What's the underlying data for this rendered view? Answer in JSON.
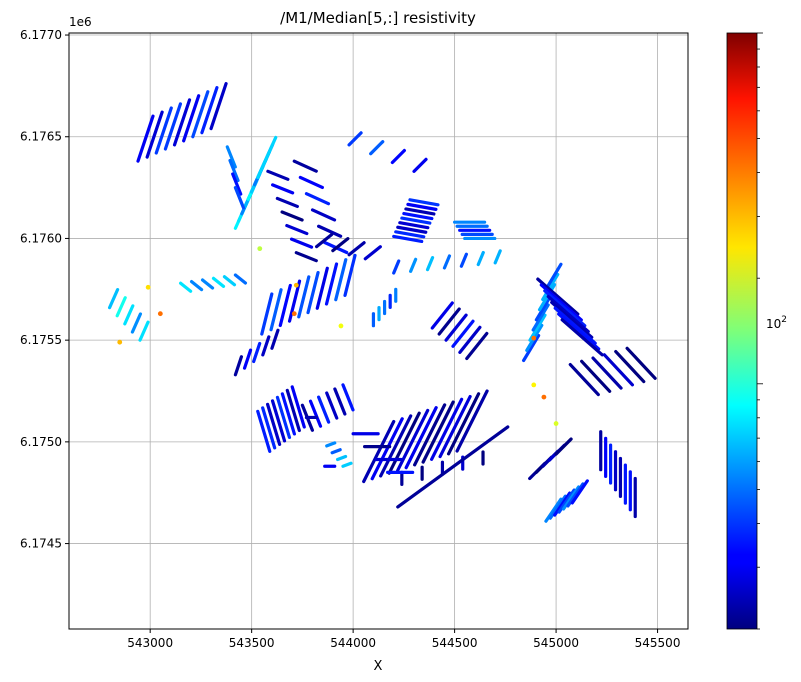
{
  "chart_data": {
    "type": "scatter",
    "title": "/M1/Median[5,:] resistivity",
    "xlabel": "X",
    "ylabel": "",
    "y_offset_label": "1e6",
    "xlim": [
      542600,
      545650
    ],
    "ylim": [
      6.17408,
      6.17701
    ],
    "x_ticks": [
      543000,
      543500,
      544000,
      544500,
      545000,
      545500
    ],
    "x_tick_labels": [
      "543000",
      "543500",
      "544000",
      "544500",
      "545000",
      "545500"
    ],
    "y_ticks": [
      6.1745,
      6.175,
      6.1755,
      6.176,
      6.1765,
      6.177
    ],
    "y_tick_labels": [
      "6.1745",
      "6.1750",
      "6.1755",
      "6.1760",
      "6.1765",
      "6.1770"
    ],
    "grid": true,
    "colorbar": {
      "colormap": "jet",
      "scale": "log",
      "range": [
        20,
        1000
      ],
      "tick_label": "10^2",
      "tick_value": 100
    },
    "series": [
      {
        "values": [
          {
            "x": [
              542940,
              543300
            ],
            "y": [
              6.17638,
              6.17654
            ],
            "v": 35,
            "n": 9,
            "dx": 15,
            "dy": -45
          },
          {
            "x": [
              543420,
              543530
            ],
            "y": [
              6.17605,
              6.1763
            ],
            "v": 70,
            "n": 8,
            "dx": 18,
            "dy": -40
          },
          {
            "x": [
              543580,
              543720
            ],
            "y": [
              6.17633,
              6.17593
            ],
            "v": 25,
            "n": 7,
            "dx": 20,
            "dy": 8
          },
          {
            "x": [
              543710,
              543860
            ],
            "y": [
              6.17638,
              6.17598
            ],
            "v": 30,
            "n": 6,
            "dx": 22,
            "dy": 10
          },
          {
            "x": [
              543980,
              544300
            ],
            "y": [
              6.17646,
              6.17633
            ],
            "v": 38,
            "n": 4,
            "dx": 12,
            "dy": -12
          },
          {
            "x": [
              543820,
              544060
            ],
            "y": [
              6.17596,
              6.1759
            ],
            "v": 22,
            "n": 4,
            "dx": 15,
            "dy": -12
          },
          {
            "x": [
              544200,
              544280
            ],
            "y": [
              6.17601,
              6.17619
            ],
            "v": 32,
            "n": 9,
            "dx": 28,
            "dy": 5
          },
          {
            "x": [
              544500,
              544550
            ],
            "y": [
              6.17608,
              6.176
            ],
            "v": 45,
            "n": 5,
            "dx": 30,
            "dy": 0
          },
          {
            "x": [
              544200,
              544700
            ],
            "y": [
              6.17583,
              6.17588
            ],
            "v": 55,
            "n": 7,
            "dx": 5,
            "dy": -12
          },
          {
            "x": [
              543150,
              543420
            ],
            "y": [
              6.17578,
              6.17582
            ],
            "v": 65,
            "n": 6,
            "dx": 10,
            "dy": 8
          },
          {
            "x": [
              542800,
              542950
            ],
            "y": [
              6.17566,
              6.1755
            ],
            "v": 75,
            "n": 5,
            "dx": 8,
            "dy": -18
          },
          {
            "x": [
              543550,
              543960
            ],
            "y": [
              6.17553,
              6.17572
            ],
            "v": 38,
            "n": 10,
            "dx": 10,
            "dy": -40
          },
          {
            "x": [
              543420,
              543600
            ],
            "y": [
              6.17533,
              6.17546
            ],
            "v": 30,
            "n": 5,
            "dx": 6,
            "dy": -18
          },
          {
            "x": [
              543530,
              543700
            ],
            "y": [
              6.17515,
              6.17527
            ],
            "v": 32,
            "n": 8,
            "dx": 12,
            "dy": 40
          },
          {
            "x": [
              543750,
              543950
            ],
            "y": [
              6.17518,
              6.17528
            ],
            "v": 30,
            "n": 6,
            "dx": 10,
            "dy": 25
          },
          {
            "x": [
              544200,
              544660
            ],
            "y": [
              6.1751,
              6.17525
            ],
            "v": 25,
            "n": 12,
            "dx": -30,
            "dy": 60
          },
          {
            "x": [
              544240,
              544640
            ],
            "y": [
              6.17485,
              6.17495
            ],
            "v": 22,
            "n": 5,
            "dx": 0,
            "dy": 12
          },
          {
            "x": [
              544390,
              544560
            ],
            "y": [
              6.17556,
              6.17541
            ],
            "v": 28,
            "n": 6,
            "dx": 20,
            "dy": -25
          },
          {
            "x": [
              544000,
              544170
            ],
            "y": [
              6.17504,
              6.17485
            ],
            "v": 28,
            "n": 4,
            "dx": 25,
            "dy": 0
          },
          {
            "x": [
              544840,
              544950
            ],
            "y": [
              6.1754,
              6.17575
            ],
            "v": 55,
            "n": 8,
            "dx": 15,
            "dy": -25
          },
          {
            "x": [
              544910,
              545030
            ],
            "y": [
              6.1758,
              6.1756
            ],
            "v": 30,
            "n": 8,
            "dx": 40,
            "dy": 35
          },
          {
            "x": [
              545070,
              545350
            ],
            "y": [
              6.17538,
              6.17546
            ],
            "v": 22,
            "n": 6,
            "dx": 28,
            "dy": 30
          },
          {
            "x": [
              545220,
              545390
            ],
            "y": [
              6.17505,
              6.17482
            ],
            "v": 30,
            "n": 8,
            "dx": 0,
            "dy": 38
          },
          {
            "x": [
              544950,
              545080
            ],
            "y": [
              6.17461,
              6.1747
            ],
            "v": 45,
            "n": 7,
            "dx": 15,
            "dy": -22
          },
          {
            "x": [
              544870,
              545000
            ],
            "y": [
              6.17482,
              6.17494
            ],
            "v": 22,
            "n": 5,
            "dx": 15,
            "dy": -15
          },
          {
            "x": [
              544100,
              544210
            ],
            "y": [
              6.17563,
              6.17575
            ],
            "v": 50,
            "n": 5,
            "dx": 0,
            "dy": 12
          },
          {
            "x": [
              543870,
              543950
            ],
            "y": [
              6.17498,
              6.17488
            ],
            "v": 60,
            "n": 4,
            "dx": 8,
            "dy": -3
          }
        ]
      },
      {
        "values": [
          {
            "x": [
              544220,
              544240
            ],
            "y": [
              6.17468,
              6.1746
            ],
            "v": 22,
            "n": 1,
            "dx": 110,
            "dy": -80
          },
          {
            "x": [
              543380,
              543420
            ],
            "y": [
              6.17645,
              6.17625
            ],
            "v": 45,
            "n": 4,
            "dx": 8,
            "dy": 20
          },
          {
            "x": [
              543770,
              543860
            ],
            "y": [
              6.17512,
              6.17488
            ],
            "v": 25,
            "n": 2,
            "dx": 10,
            "dy": 0
          }
        ]
      },
      {
        "values": [
          {
            "x": [
              542850,
              542850
            ],
            "y": [
              6.17549,
              6.17549
            ],
            "v": 300
          },
          {
            "x": [
              542990,
              542990
            ],
            "y": [
              6.17576,
              6.17576
            ],
            "v": 260
          },
          {
            "x": [
              543050,
              543050
            ],
            "y": [
              6.17563,
              6.17563
            ],
            "v": 400
          },
          {
            "x": [
              543540,
              543540
            ],
            "y": [
              6.17595,
              6.17595
            ],
            "v": 180
          },
          {
            "x": [
              543710,
              543710
            ],
            "y": [
              6.17563,
              6.17563
            ],
            "v": 400
          },
          {
            "x": [
              544890,
              544890
            ],
            "y": [
              6.17528,
              6.17528
            ],
            "v": 240
          },
          {
            "x": [
              544940,
              544940
            ],
            "y": [
              6.17522,
              6.17522
            ],
            "v": 400
          },
          {
            "x": [
              545000,
              545000
            ],
            "y": [
              6.17509,
              6.17509
            ],
            "v": 200
          },
          {
            "x": [
              544890,
              544890
            ],
            "y": [
              6.17551,
              6.17551
            ],
            "v": 400
          },
          {
            "x": [
              543940,
              543940
            ],
            "y": [
              6.17557,
              6.17557
            ],
            "v": 220
          },
          {
            "x": [
              543720,
              543720
            ],
            "y": [
              6.17577,
              6.17577
            ],
            "v": 300
          }
        ]
      }
    ]
  }
}
